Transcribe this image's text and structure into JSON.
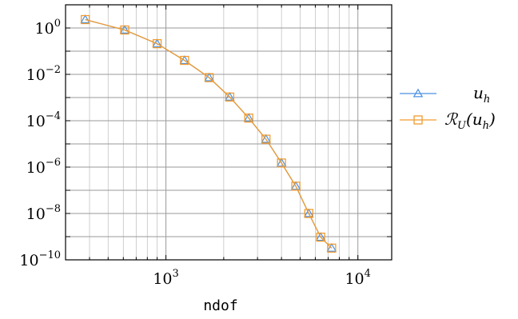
{
  "chart_data": {
    "type": "line",
    "x_scale": "log",
    "y_scale": "log",
    "xlabel": "ndof",
    "ylabel": "",
    "xlim": [
      300,
      15000
    ],
    "ylim": [
      1e-10,
      10
    ],
    "x_ticks": [
      {
        "value": 1000,
        "base": "10",
        "exp": "3"
      },
      {
        "value": 10000,
        "base": "10",
        "exp": "4"
      }
    ],
    "y_ticks": [
      {
        "value": 1,
        "base": "10",
        "exp": "0"
      },
      {
        "value": 0.01,
        "base": "10",
        "exp": "−2"
      },
      {
        "value": 0.0001,
        "base": "10",
        "exp": "−4"
      },
      {
        "value": 1e-06,
        "base": "10",
        "exp": "−6"
      },
      {
        "value": 1e-08,
        "base": "10",
        "exp": "−8"
      },
      {
        "value": 1e-10,
        "base": "10",
        "exp": "−10"
      }
    ],
    "grid": true,
    "legend_position": "right",
    "series": [
      {
        "name": "u_h",
        "label_main": "u",
        "label_sub": "h",
        "color": "#4a90e2",
        "marker": "triangle",
        "x": [
          380,
          610,
          900,
          1250,
          1680,
          2150,
          2700,
          3320,
          4000,
          4750,
          5550,
          6400,
          7300
        ],
        "y": [
          2.3,
          0.82,
          0.21,
          0.04,
          0.0072,
          0.00105,
          0.00013,
          1.6e-05,
          1.5e-06,
          1.5e-07,
          1e-08,
          9.5e-10,
          3.2e-10
        ]
      },
      {
        "name": "R_U(u_h)",
        "label_main": "ℛ",
        "label_sub": "U",
        "label_tail": "(u",
        "label_tail_sub": "h",
        "label_end": ")",
        "color": "#f29b2e",
        "marker": "square",
        "x": [
          380,
          610,
          900,
          1250,
          1680,
          2150,
          2700,
          3320,
          4000,
          4750,
          5550,
          6400,
          7300
        ],
        "y": [
          2.3,
          0.82,
          0.21,
          0.04,
          0.0072,
          0.00105,
          0.00013,
          1.6e-05,
          1.5e-06,
          1.5e-07,
          1e-08,
          9.5e-10,
          3.2e-10
        ]
      }
    ]
  }
}
